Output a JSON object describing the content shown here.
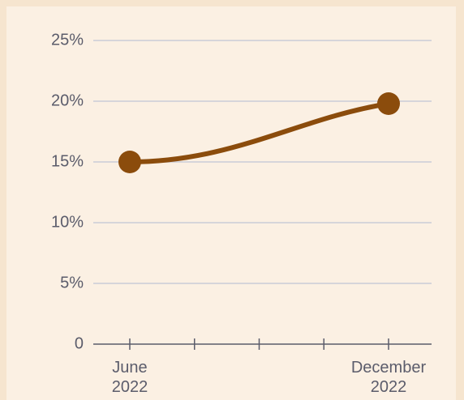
{
  "chart_data": {
    "type": "line",
    "categories": [
      "June 2022",
      "December 2022"
    ],
    "series": [
      {
        "name": null,
        "color": "#8b4c0c",
        "values": [
          15,
          19.8
        ]
      }
    ],
    "ylim": [
      0,
      25
    ],
    "yticks": [
      0,
      {
        "value": 5,
        "label": "5%"
      },
      {
        "value": 10,
        "label": "10%"
      },
      {
        "value": 15,
        "label": "15%"
      },
      {
        "value": 20,
        "label": "20%"
      },
      {
        "value": 25,
        "label": "25%"
      }
    ],
    "grid": true
  }
}
